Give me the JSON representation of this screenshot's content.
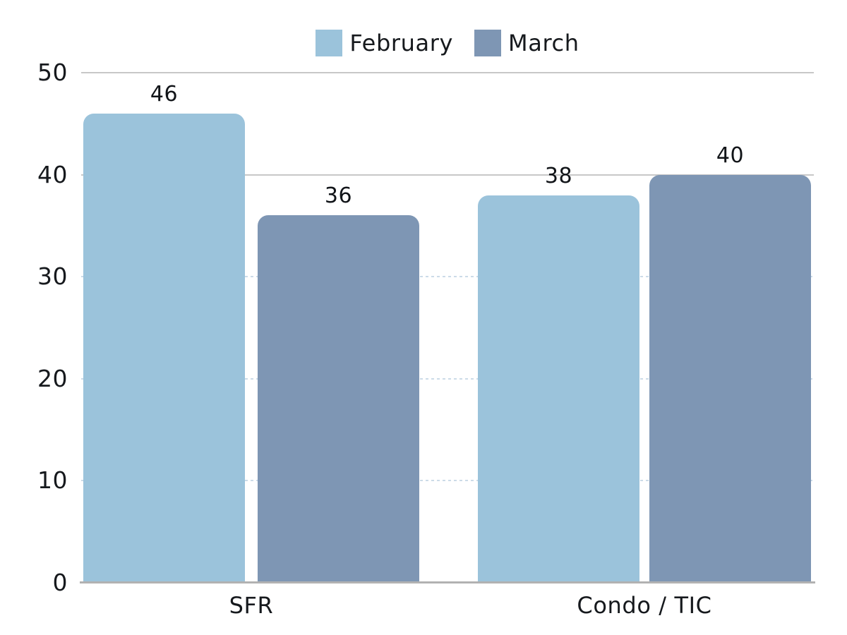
{
  "legend": {
    "position": "top"
  },
  "chart_data": {
    "type": "bar",
    "title": "",
    "categories": [
      "SFR",
      "Condo / TIC"
    ],
    "series": [
      {
        "name": "February",
        "color": "#9bc3db",
        "values": [
          46,
          38
        ]
      },
      {
        "name": "March",
        "color": "#7e96b4",
        "values": [
          36,
          40
        ]
      }
    ],
    "ylim": [
      0,
      50
    ],
    "yticks": [
      0,
      10,
      20,
      30,
      40,
      50
    ],
    "ytick_labels": [
      "0",
      "10",
      "20",
      "30",
      "40",
      "50"
    ],
    "grid": "horizontal",
    "solid_gridlines_at": [
      40,
      50
    ],
    "dashed_gridlines_at": [
      10,
      20,
      30
    ],
    "legend_position": "top",
    "bar_value_labels": [
      "46",
      "36",
      "38",
      "40"
    ],
    "colors": {
      "solid_gridline": "#c8c8c8",
      "dashed_gridline": "#ccdbe8",
      "axis_line": "#b2b2b2",
      "label_text": "#16191d",
      "background": "#ffffff"
    }
  }
}
